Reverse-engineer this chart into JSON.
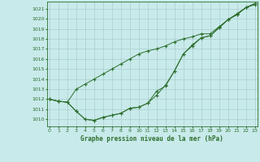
{
  "title": "Graphe pression niveau de la mer (hPa)",
  "bg_color": "#c8eaea",
  "grid_color": "#aacece",
  "line_color": "#2d6e2d",
  "x_ticks": [
    0,
    1,
    2,
    3,
    4,
    5,
    6,
    7,
    8,
    9,
    10,
    11,
    12,
    13,
    14,
    15,
    16,
    17,
    18,
    19,
    20,
    21,
    22,
    23
  ],
  "y_ticks": [
    1010,
    1011,
    1012,
    1013,
    1014,
    1015,
    1016,
    1017,
    1018,
    1019,
    1020,
    1021
  ],
  "ylim": [
    1009.3,
    1021.7
  ],
  "xlim": [
    -0.3,
    23.3
  ],
  "series": [
    [
      1012.0,
      1011.8,
      1011.7,
      1013.0,
      1013.5,
      1014.0,
      1014.5,
      1015.0,
      1015.5,
      1016.0,
      1016.5,
      1016.8,
      1017.0,
      1017.3,
      1017.7,
      1018.0,
      1018.2,
      1018.5,
      1018.5,
      1019.2,
      1019.9,
      1020.4,
      1021.1,
      1021.5
    ],
    [
      1012.0,
      1011.8,
      1011.7,
      1010.8,
      1010.0,
      1009.9,
      1010.2,
      1010.4,
      1010.6,
      1011.1,
      1011.2,
      1011.6,
      1012.4,
      1013.4,
      1014.8,
      1016.5,
      1017.3,
      1018.1,
      1018.3,
      1019.1,
      1019.9,
      1020.4,
      1021.1,
      1021.4
    ],
    [
      1012.0,
      1011.8,
      1011.7,
      1010.8,
      1010.0,
      1009.9,
      1010.2,
      1010.4,
      1010.6,
      1011.1,
      1011.2,
      1011.6,
      1012.8,
      1013.3,
      1014.8,
      1016.5,
      1017.4,
      1018.1,
      1018.3,
      1019.1,
      1019.9,
      1020.5,
      1021.1,
      1021.5
    ]
  ],
  "marker": "+",
  "markersize": 2.5,
  "linewidth": 0.7,
  "xlabel_fontsize": 5.5,
  "tick_fontsize": 4.5
}
